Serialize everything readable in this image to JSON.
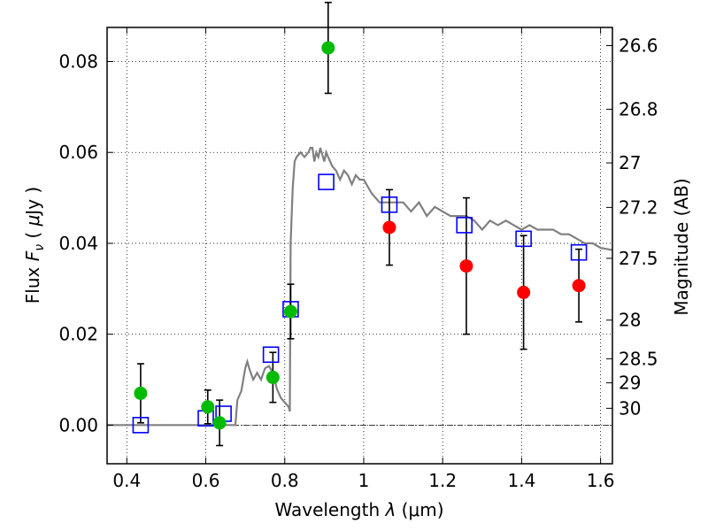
{
  "chart_data": {
    "type": "scatter",
    "title": "",
    "xlabel": "Wavelength  λ (μm)",
    "ylabel": "Flux  F_ν  ( μJy )",
    "ylabel_parts": {
      "prefix": "Flux  ",
      "var": "F",
      "sub": "ν",
      "unit_open": "  ( ",
      "mu": "μ",
      "unit_rest": "Jy )"
    },
    "xlabel_parts": {
      "prefix": "Wavelength  ",
      "var": "λ",
      "unit": " (μm)"
    },
    "y2label": "Magnitude (AB)",
    "xlim": [
      0.35,
      1.63
    ],
    "ylim": [
      -0.0085,
      0.0875
    ],
    "grid": true,
    "x_ticks": [
      {
        "value": 0.4,
        "label": "0.4"
      },
      {
        "value": 0.6,
        "label": "0.6"
      },
      {
        "value": 0.8,
        "label": "0.8"
      },
      {
        "value": 1.0,
        "label": "1"
      },
      {
        "value": 1.2,
        "label": "1.2"
      },
      {
        "value": 1.4,
        "label": "1.4"
      },
      {
        "value": 1.6,
        "label": "1.6"
      }
    ],
    "y_ticks": [
      {
        "value": 0.0,
        "label": "0.00"
      },
      {
        "value": 0.02,
        "label": "0.02"
      },
      {
        "value": 0.04,
        "label": "0.04"
      },
      {
        "value": 0.06,
        "label": "0.06"
      },
      {
        "value": 0.08,
        "label": "0.08"
      }
    ],
    "mag_ticks": [
      {
        "flux": 0.0835,
        "label": "26.6"
      },
      {
        "flux": 0.0695,
        "label": "26.8"
      },
      {
        "flux": 0.0577,
        "label": "27"
      },
      {
        "flux": 0.0479,
        "label": "27.2"
      },
      {
        "flux": 0.0367,
        "label": "27.5"
      },
      {
        "flux": 0.0231,
        "label": "28"
      },
      {
        "flux": 0.0146,
        "label": "28.5"
      },
      {
        "flux": 0.0093,
        "label": "29"
      },
      {
        "flux": 0.0037,
        "label": "30"
      }
    ],
    "colors": {
      "model_line": "#808080",
      "model_points": "#0000ff",
      "detections": "#00bb00",
      "low_snr": "#ff0000",
      "errorbar": "#000000",
      "zero_line": "#000000"
    },
    "model_spectrum": {
      "x": [
        0.35,
        0.66,
        0.675,
        0.68,
        0.69,
        0.7,
        0.705,
        0.71,
        0.72,
        0.73,
        0.74,
        0.75,
        0.76,
        0.77,
        0.78,
        0.79,
        0.8,
        0.81,
        0.813,
        0.815,
        0.82,
        0.825,
        0.83,
        0.84,
        0.85,
        0.86,
        0.865,
        0.87,
        0.875,
        0.88,
        0.885,
        0.89,
        0.9,
        0.905,
        0.91,
        0.92,
        0.93,
        0.935,
        0.94,
        0.95,
        0.96,
        0.97,
        0.98,
        0.99,
        1.0,
        1.02,
        1.04,
        1.06,
        1.08,
        1.1,
        1.12,
        1.14,
        1.16,
        1.18,
        1.2,
        1.22,
        1.24,
        1.26,
        1.28,
        1.3,
        1.32,
        1.34,
        1.36,
        1.38,
        1.4,
        1.42,
        1.44,
        1.46,
        1.48,
        1.5,
        1.52,
        1.54,
        1.56,
        1.58,
        1.6,
        1.63
      ],
      "y": [
        0.0,
        0.0,
        0.0,
        0.0055,
        0.0075,
        0.0125,
        0.014,
        0.0125,
        0.01,
        0.0115,
        0.01,
        0.0125,
        0.013,
        0.0115,
        0.008,
        0.006,
        0.005,
        0.004,
        0.003,
        0.04,
        0.052,
        0.058,
        0.059,
        0.06,
        0.059,
        0.06,
        0.061,
        0.061,
        0.058,
        0.06,
        0.059,
        0.061,
        0.058,
        0.06,
        0.059,
        0.057,
        0.056,
        0.055,
        0.054,
        0.056,
        0.055,
        0.053,
        0.055,
        0.054,
        0.054,
        0.051,
        0.049,
        0.049,
        0.049,
        0.049,
        0.047,
        0.049,
        0.046,
        0.048,
        0.047,
        0.046,
        0.046,
        0.046,
        0.045,
        0.043,
        0.045,
        0.044,
        0.045,
        0.044,
        0.043,
        0.044,
        0.043,
        0.043,
        0.043,
        0.042,
        0.042,
        0.041,
        0.04,
        0.04,
        0.039,
        0.0385
      ]
    },
    "series": [
      {
        "marker": "square",
        "x": [
          0.435,
          0.6,
          0.645,
          0.765,
          0.815,
          0.905,
          1.065,
          1.255,
          1.405,
          1.545
        ],
        "y": [
          0.0,
          0.0015,
          0.0025,
          0.0155,
          0.0255,
          0.0535,
          0.0485,
          0.044,
          0.041,
          0.038
        ]
      },
      {
        "marker": "circle",
        "x": [
          0.435,
          0.605,
          0.635,
          0.77,
          0.815,
          0.91
        ],
        "y": [
          0.007,
          0.004,
          0.0005,
          0.0105,
          0.025,
          0.083
        ],
        "err": [
          0.0065,
          0.0037,
          0.005,
          0.0055,
          0.006,
          0.01
        ],
        "color": "#00bb00"
      },
      {
        "marker": "circle",
        "x": [
          1.065,
          1.26,
          1.405,
          1.545
        ],
        "y": [
          0.0435,
          0.035,
          0.0292,
          0.0307
        ],
        "err": [
          0.0083,
          0.015,
          0.0125,
          0.008
        ],
        "color": "#ff0000"
      }
    ]
  }
}
